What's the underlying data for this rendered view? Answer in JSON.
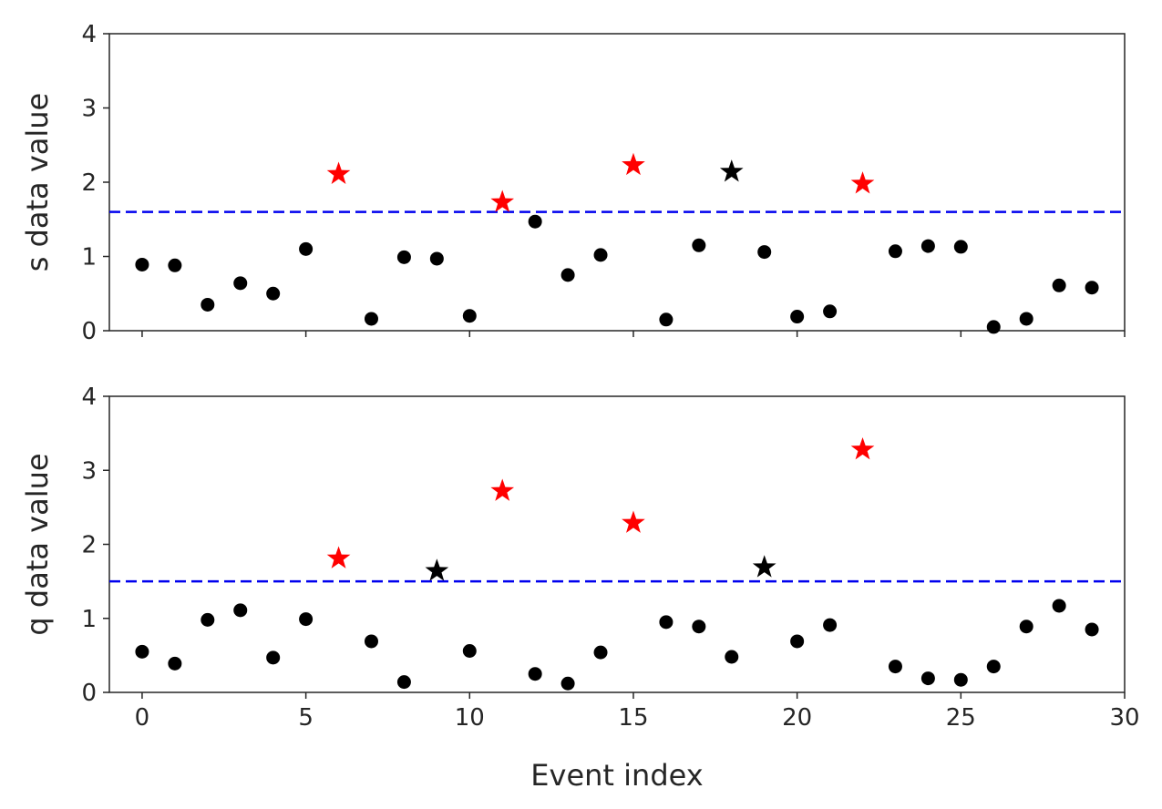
{
  "chart_data": [
    {
      "type": "scatter",
      "ylabel": "s data value",
      "xlabel": "",
      "xlim": [
        -1,
        30
      ],
      "ylim": [
        0,
        4
      ],
      "xticks": [
        "0",
        "5",
        "10",
        "15",
        "20",
        "25",
        "30"
      ],
      "yticks": [
        "0",
        "1",
        "2",
        "3",
        "4"
      ],
      "threshold": 1.6,
      "threshold_color": "#0000ee",
      "series": [
        {
          "marker": "dot",
          "color": "#000000",
          "points": [
            [
              0,
              0.89
            ],
            [
              1,
              0.88
            ],
            [
              2,
              0.35
            ],
            [
              3,
              0.64
            ],
            [
              4,
              0.5
            ],
            [
              5,
              1.1
            ],
            [
              7,
              0.16
            ],
            [
              8,
              0.99
            ],
            [
              9,
              0.97
            ],
            [
              10,
              0.2
            ],
            [
              12,
              1.47
            ],
            [
              13,
              0.75
            ],
            [
              14,
              1.02
            ],
            [
              16,
              0.15
            ],
            [
              17,
              1.15
            ],
            [
              19,
              1.06
            ],
            [
              20,
              0.19
            ],
            [
              21,
              0.26
            ],
            [
              23,
              1.07
            ],
            [
              24,
              1.14
            ],
            [
              25,
              1.13
            ],
            [
              26,
              0.05
            ],
            [
              27,
              0.16
            ],
            [
              28,
              0.61
            ],
            [
              29,
              0.58
            ]
          ]
        },
        {
          "marker": "star",
          "color": "#ff0000",
          "points": [
            [
              6,
              2.11
            ],
            [
              11,
              1.73
            ],
            [
              15,
              2.23
            ],
            [
              22,
              1.98
            ]
          ]
        },
        {
          "marker": "star",
          "color": "#000000",
          "points": [
            [
              18,
              2.14
            ]
          ]
        }
      ]
    },
    {
      "type": "scatter",
      "ylabel": "q data value",
      "xlabel": "Event index",
      "xlim": [
        -1,
        30
      ],
      "ylim": [
        0,
        4
      ],
      "xticks": [
        "0",
        "5",
        "10",
        "15",
        "20",
        "25",
        "30"
      ],
      "yticks": [
        "0",
        "1",
        "2",
        "3",
        "4"
      ],
      "threshold": 1.5,
      "threshold_color": "#0000ee",
      "series": [
        {
          "marker": "dot",
          "color": "#000000",
          "points": [
            [
              0,
              0.55
            ],
            [
              1,
              0.39
            ],
            [
              2,
              0.98
            ],
            [
              3,
              1.11
            ],
            [
              4,
              0.47
            ],
            [
              5,
              0.99
            ],
            [
              7,
              0.69
            ],
            [
              8,
              0.14
            ],
            [
              10,
              0.56
            ],
            [
              12,
              0.25
            ],
            [
              13,
              0.12
            ],
            [
              14,
              0.54
            ],
            [
              16,
              0.95
            ],
            [
              17,
              0.89
            ],
            [
              18,
              0.48
            ],
            [
              20,
              0.69
            ],
            [
              21,
              0.91
            ],
            [
              23,
              0.35
            ],
            [
              24,
              0.19
            ],
            [
              25,
              0.17
            ],
            [
              26,
              0.35
            ],
            [
              27,
              0.89
            ],
            [
              28,
              1.17
            ],
            [
              29,
              0.85
            ]
          ]
        },
        {
          "marker": "star",
          "color": "#ff0000",
          "points": [
            [
              6,
              1.81
            ],
            [
              11,
              2.72
            ],
            [
              15,
              2.29
            ],
            [
              22,
              3.28
            ]
          ]
        },
        {
          "marker": "star",
          "color": "#000000",
          "points": [
            [
              9,
              1.64
            ],
            [
              19,
              1.69
            ]
          ]
        }
      ]
    }
  ]
}
